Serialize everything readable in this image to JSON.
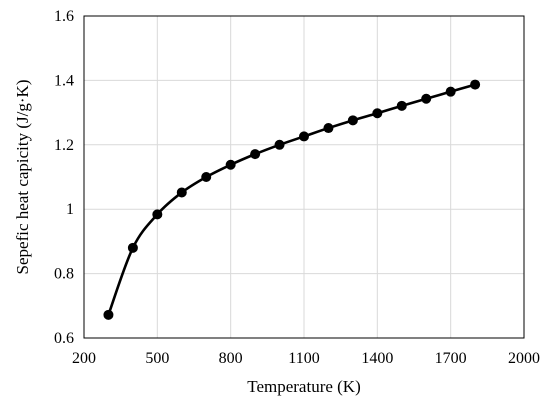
{
  "chart_data": {
    "type": "line",
    "title": "",
    "xlabel": "Temperature (K)",
    "ylabel": "Sepefic heat capicity (J/g·K)",
    "xlim": [
      200,
      2000
    ],
    "ylim": [
      0.6,
      1.6
    ],
    "x_ticks": [
      200,
      500,
      800,
      1100,
      1400,
      1700,
      2000
    ],
    "y_ticks": [
      0.6,
      0.8,
      1.0,
      1.2,
      1.4,
      1.6
    ],
    "x_tick_labels": [
      "200",
      "500",
      "800",
      "1100",
      "1400",
      "1700",
      "2000"
    ],
    "y_tick_labels": [
      "0.6",
      "0.8",
      "1",
      "1.2",
      "1.4",
      "1.6"
    ],
    "grid": true,
    "marker": "circle",
    "line_color": "#000000",
    "grid_color": "#d9d9d9",
    "series": [
      {
        "x": [
          300,
          400,
          500,
          600,
          700,
          800,
          900,
          1000,
          1100,
          1200,
          1300,
          1400,
          1500,
          1600,
          1700,
          1800
        ],
        "values": [
          0.672,
          0.88,
          0.984,
          1.052,
          1.1,
          1.138,
          1.171,
          1.2,
          1.226,
          1.252,
          1.276,
          1.298,
          1.321,
          1.343,
          1.365,
          1.387
        ]
      }
    ]
  }
}
